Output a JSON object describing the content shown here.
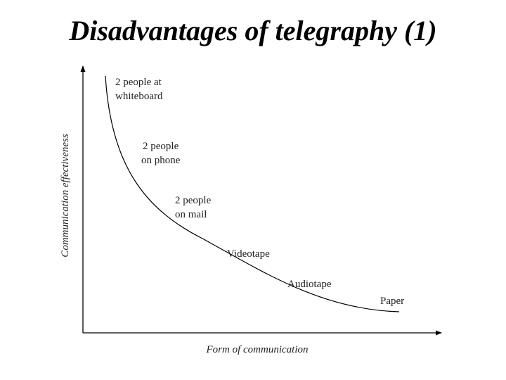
{
  "slide": {
    "title": "Disadvantages of telegraphy (1)"
  },
  "diagram": {
    "x_axis_label": "Form of communication",
    "y_axis_label": "Communication effectiveness",
    "points": [
      {
        "id": "whiteboard",
        "lines": [
          "2 people at",
          "whiteboard"
        ]
      },
      {
        "id": "phone",
        "lines": [
          "2 people",
          "on phone"
        ]
      },
      {
        "id": "mail",
        "lines": [
          "2 people",
          "on mail"
        ]
      },
      {
        "id": "videotape",
        "lines": [
          "Videotape"
        ]
      },
      {
        "id": "audiotape",
        "lines": [
          "Audiotape"
        ]
      },
      {
        "id": "paper",
        "lines": [
          "Paper"
        ]
      }
    ]
  }
}
